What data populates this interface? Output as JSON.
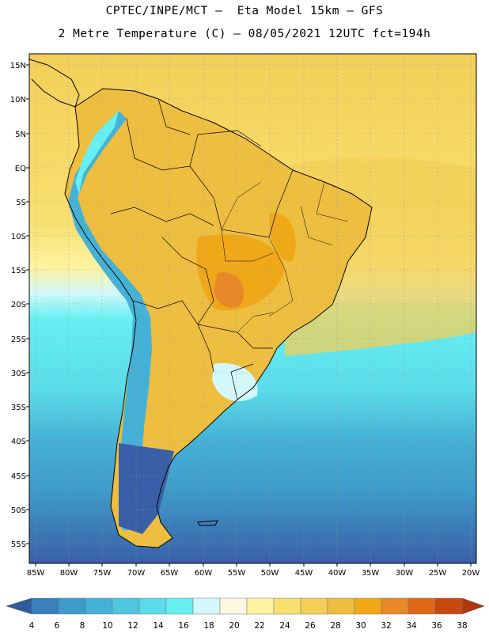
{
  "header": {
    "title_line1": "CPTEC/INPE/MCT –  Eta Model 15km – GFS",
    "title_line2": "2 Metre Temperature (C) – 08/05/2021 12UTC fct=194h"
  },
  "map": {
    "lat_labels": [
      "15N",
      "10N",
      "5N",
      "EQ",
      "5S",
      "10S",
      "15S",
      "20S",
      "25S",
      "30S",
      "35S",
      "40S",
      "45S",
      "50S",
      "55S"
    ],
    "lon_labels": [
      "85W",
      "80W",
      "75W",
      "70W",
      "65W",
      "60W",
      "55W",
      "50W",
      "45W",
      "40W",
      "35W",
      "30W",
      "25W",
      "20W"
    ]
  },
  "colorbar": {
    "labels": [
      "4",
      "6",
      "8",
      "10",
      "12",
      "14",
      "16",
      "18",
      "20",
      "22",
      "24",
      "26",
      "28",
      "30",
      "32",
      "34",
      "36",
      "38"
    ],
    "colors": [
      "#3a5fa8",
      "#3a7fbd",
      "#3d9ac9",
      "#46b1d6",
      "#4ec6df",
      "#5adbe9",
      "#66f0f2",
      "#d2f8fb",
      "#fff8e0",
      "#fdf3a0",
      "#f8e070",
      "#f3cf58",
      "#eebe40",
      "#f0a818",
      "#e88828",
      "#e06818",
      "#c84810",
      "#b03810"
    ]
  }
}
